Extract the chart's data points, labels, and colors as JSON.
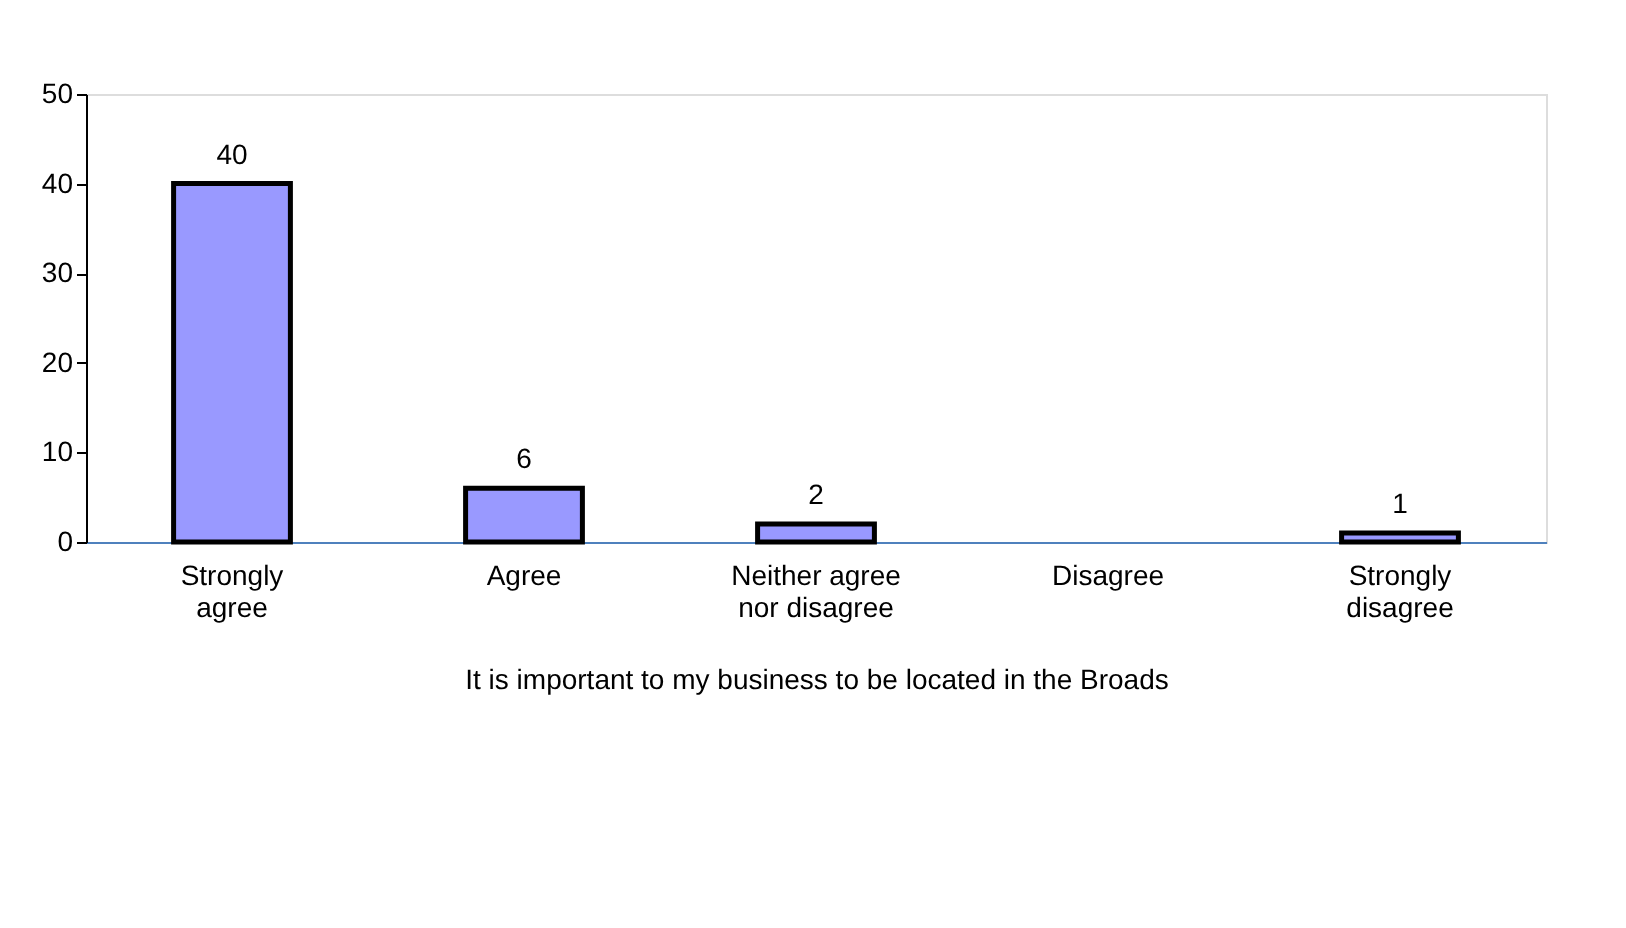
{
  "chart_data": {
    "type": "bar",
    "xlabel": "It is important to my business to be located in the Broads",
    "categories": [
      "Strongly agree",
      "Agree",
      "Neither agree nor disagree",
      "Disagree",
      "Strongly disagree"
    ],
    "values": [
      40,
      6,
      2,
      0,
      1
    ],
    "value_labels": [
      "40",
      "6",
      "2",
      null,
      "1"
    ],
    "color": "#9999ff",
    "ylim": [
      0,
      50
    ],
    "yticks": [
      0,
      10,
      20,
      30,
      40,
      50
    ],
    "grid": false
  }
}
